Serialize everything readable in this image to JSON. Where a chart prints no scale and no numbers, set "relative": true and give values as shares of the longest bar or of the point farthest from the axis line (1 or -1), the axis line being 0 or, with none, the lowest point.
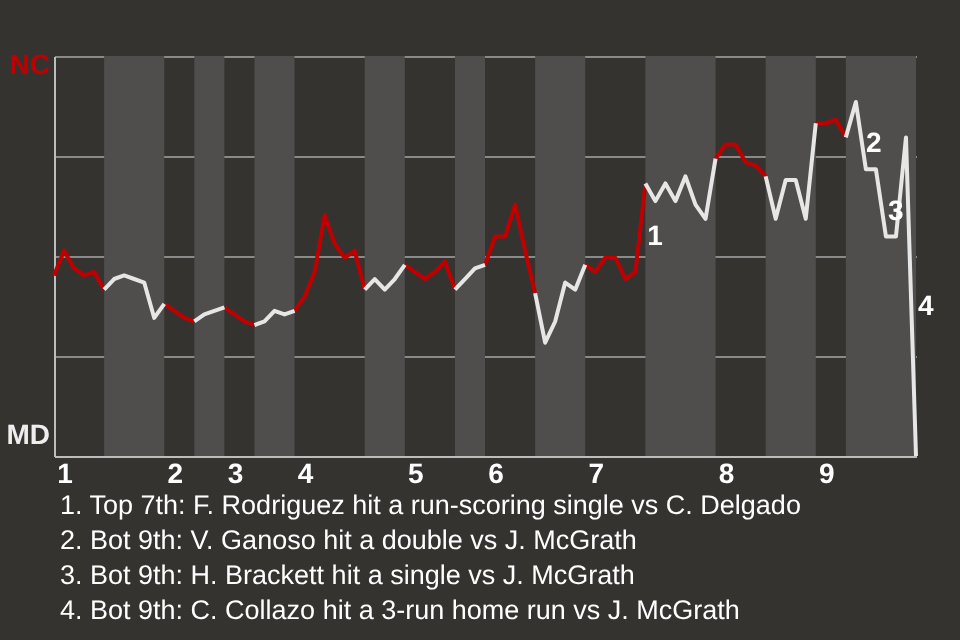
{
  "chart_data": {
    "type": "line",
    "relative": true,
    "categories": [
      null,
      "1",
      null,
      null,
      null,
      null,
      null,
      null,
      null,
      null,
      null,
      null,
      "2",
      null,
      null,
      null,
      null,
      null,
      "3",
      null,
      null,
      null,
      null,
      null,
      null,
      "4",
      null,
      null,
      null,
      null,
      null,
      null,
      null,
      null,
      null,
      null,
      "5",
      null,
      null,
      null,
      null,
      null,
      null,
      null,
      "6",
      null,
      null,
      null,
      null,
      null,
      null,
      null,
      null,
      null,
      "7",
      null,
      null,
      null,
      null,
      null,
      null,
      null,
      null,
      null,
      null,
      null,
      null,
      "8",
      null,
      null,
      null,
      null,
      null,
      null,
      null,
      null,
      null,
      "9",
      null,
      null,
      null,
      null,
      null,
      null,
      null,
      null,
      null
    ],
    "series": [
      {
        "color": "#c00000",
        "values": [
          0.51,
          0.58,
          0.53,
          0.51,
          0.52,
          0.47,
          null,
          null,
          null,
          null,
          null,
          0.43,
          0.41,
          0.39,
          0.38,
          null,
          null,
          0.42,
          0.4,
          0.38,
          0.37,
          null,
          null,
          null,
          0.41,
          0.45,
          0.52,
          0.68,
          0.6,
          0.56,
          0.58,
          0.47,
          null,
          null,
          null,
          0.54,
          0.52,
          0.5,
          0.52,
          0.55,
          0.47,
          null,
          null,
          0.54,
          0.62,
          0.62,
          0.71,
          0.58,
          0.46,
          null,
          null,
          null,
          null,
          0.54,
          0.52,
          0.56,
          0.56,
          0.5,
          0.52,
          0.77,
          null,
          null,
          null,
          null,
          null,
          null,
          0.84,
          0.88,
          0.88,
          0.83,
          0.82,
          0.79,
          null,
          null,
          null,
          null,
          0.94,
          0.94,
          0.95,
          0.9,
          null,
          null,
          null,
          null,
          null,
          null,
          null
        ]
      },
      {
        "color": "#e6e6e6",
        "values": [
          null,
          null,
          null,
          null,
          null,
          0.47,
          0.5,
          0.51,
          0.5,
          0.49,
          0.39,
          0.43,
          null,
          null,
          0.38,
          0.4,
          0.41,
          0.42,
          null,
          null,
          0.37,
          0.38,
          0.41,
          0.4,
          0.41,
          null,
          null,
          null,
          null,
          null,
          null,
          0.47,
          0.5,
          0.47,
          0.5,
          0.54,
          null,
          null,
          null,
          null,
          0.47,
          0.5,
          0.53,
          0.54,
          null,
          null,
          null,
          null,
          0.46,
          0.32,
          0.38,
          0.49,
          0.47,
          0.54,
          null,
          null,
          null,
          null,
          null,
          0.77,
          0.72,
          0.77,
          0.72,
          0.79,
          0.71,
          0.67,
          0.84,
          null,
          null,
          null,
          null,
          0.79,
          0.67,
          0.78,
          0.78,
          0.67,
          0.94,
          null,
          null,
          0.9,
          1,
          0.81,
          0.81,
          0.62,
          0.62,
          0.9,
          0
        ]
      }
    ],
    "grid": "y",
    "annotations": [
      "1",
      "2",
      "3",
      "4",
      "NC",
      "MD",
      "1. Top 7th: F. Rodriguez hit a run-scoring single vs C. Delgado",
      "2. Bot 9th: V. Ganoso hit a double vs J. McGrath",
      "3. Bot 9th: H. Brackett hit a single vs J. McGrath",
      "4. Bot 9th: C. Collazo hit a 3-run home run vs J. McGrath"
    ]
  }
}
